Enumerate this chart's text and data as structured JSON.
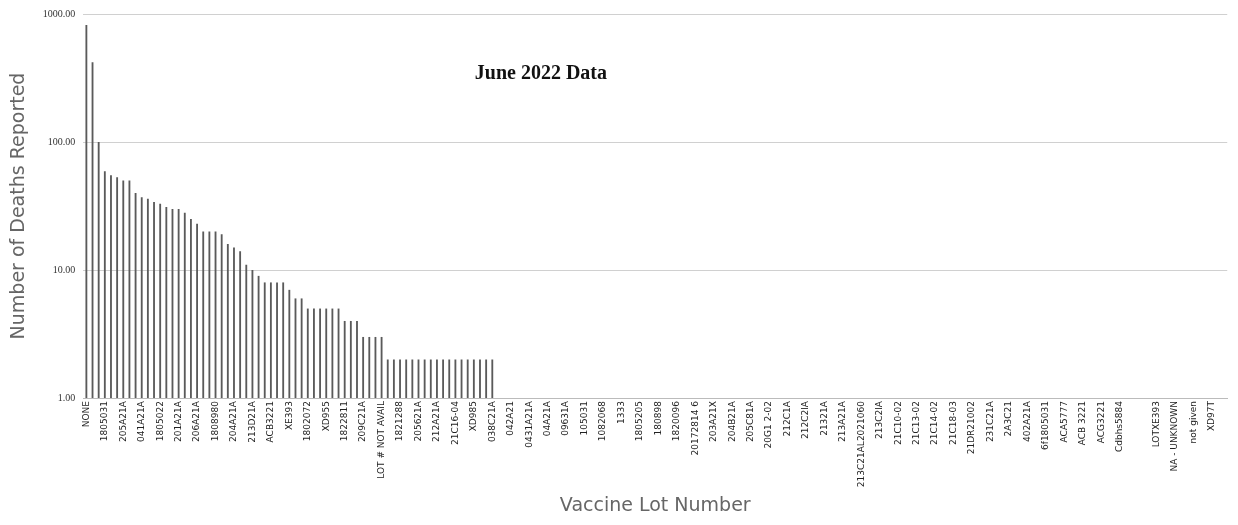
{
  "chart_data": {
    "type": "bar",
    "title": "June 2022 Data",
    "xlabel": "Vaccine Lot Number",
    "ylabel": "Number of Deaths Reported",
    "categories": [
      "NONE",
      null,
      null,
      "1805031",
      null,
      null,
      "205A21A",
      null,
      null,
      "041A21A",
      null,
      null,
      "1805022",
      null,
      null,
      "201A21A",
      null,
      null,
      "206A21A",
      null,
      null,
      "1808980",
      null,
      null,
      "204A21A",
      null,
      null,
      "213D21A",
      null,
      null,
      "ACB3221",
      null,
      null,
      "XE393",
      null,
      null,
      "1802072",
      null,
      null,
      "XD955",
      null,
      null,
      "1822811",
      null,
      null,
      "209C21A",
      null,
      null,
      "LOT # NOT AVAIL",
      null,
      null,
      "1821288",
      null,
      null,
      "205621A",
      null,
      null,
      "212A21A",
      null,
      null,
      "21C16-04",
      null,
      null,
      "XD985",
      null,
      null,
      "038C21A",
      null,
      null,
      "042A21",
      null,
      null,
      "0431A21A",
      null,
      null,
      "04A21A",
      null,
      null,
      "09631A",
      null,
      null,
      "105031",
      null,
      null,
      "1082068",
      null,
      null,
      "1333",
      null,
      null,
      "1805205",
      null,
      null,
      "180898",
      null,
      null,
      "1820096",
      null,
      null,
      "20172814 6",
      null,
      null,
      "203A21X",
      null,
      null,
      "204B21A",
      null,
      null,
      "205C81A",
      null,
      null,
      "20G1 2-02",
      null,
      null,
      "212C1A",
      null,
      null,
      "212C2IA",
      null,
      null,
      "21321A",
      null,
      null,
      "213A21A",
      null,
      null,
      "213C21AL2021060",
      null,
      null,
      "213C2IA",
      null,
      null,
      "21C10-02",
      null,
      null,
      "21C13-02",
      null,
      null,
      "21C14-02",
      null,
      null,
      "21C18-03",
      null,
      null,
      "21DR21002",
      null,
      null,
      "231C21A",
      null,
      null,
      "2A3C21",
      null,
      null,
      "402A21A",
      null,
      null,
      "6f1805031",
      null,
      null,
      "ACA5777",
      null,
      null,
      "ACB 3221",
      null,
      null,
      "ACG3221",
      null,
      null,
      "Cdbhs5884",
      null,
      null,
      null,
      null,
      null,
      "LOTXE393",
      null,
      null,
      "NA - UNKNOWN",
      null,
      null,
      "not given",
      null,
      null,
      "XD97T",
      null,
      null
    ],
    "values": [
      820,
      420,
      100,
      59,
      55,
      53,
      50,
      50,
      40,
      37,
      36,
      34,
      33,
      31,
      30,
      30,
      28,
      25,
      23,
      20,
      20,
      20,
      19,
      16,
      15,
      14,
      11,
      10,
      9,
      8,
      8,
      8,
      8,
      7,
      6,
      6,
      5,
      5,
      5,
      5,
      5,
      5,
      4,
      4,
      4,
      3,
      3,
      3,
      3,
      2,
      2,
      2,
      2,
      2,
      2,
      2,
      2,
      2,
      2,
      2,
      2,
      2,
      2,
      2,
      2,
      2,
      2,
      1,
      1,
      1,
      1,
      1,
      1,
      1,
      1,
      1,
      1,
      1,
      1,
      1,
      1,
      1,
      1,
      1,
      1,
      1,
      1,
      1,
      1,
      1,
      1,
      1,
      1,
      1,
      1,
      1,
      1,
      1,
      1,
      1,
      1,
      1,
      1,
      1,
      1,
      1,
      1,
      1,
      1,
      1,
      1,
      1,
      1,
      1,
      1,
      1,
      1,
      1,
      1,
      1,
      1,
      1,
      1,
      1,
      1,
      1,
      1,
      1,
      1,
      1,
      1,
      1,
      1,
      1,
      1,
      1,
      1,
      1,
      1,
      1,
      1,
      1,
      1,
      1,
      1,
      1,
      1,
      1,
      1,
      1,
      1,
      1,
      1,
      1,
      1,
      1,
      1,
      1,
      1,
      1,
      1,
      1,
      1,
      1,
      1,
      1,
      1,
      1,
      1,
      1,
      1,
      1,
      1,
      1,
      1,
      1,
      1,
      1,
      1,
      1,
      1,
      1,
      1,
      1,
      1,
      1
    ],
    "color": "#5a5a5a",
    "log": true,
    "ylim": [
      1,
      1000
    ],
    "yticks": [
      {
        "value": 1,
        "label": "1.00"
      },
      {
        "value": 10,
        "label": "10.00"
      },
      {
        "value": 100,
        "label": "100.00"
      },
      {
        "value": 1000,
        "label": "1000.00"
      }
    ],
    "grid": "y"
  }
}
